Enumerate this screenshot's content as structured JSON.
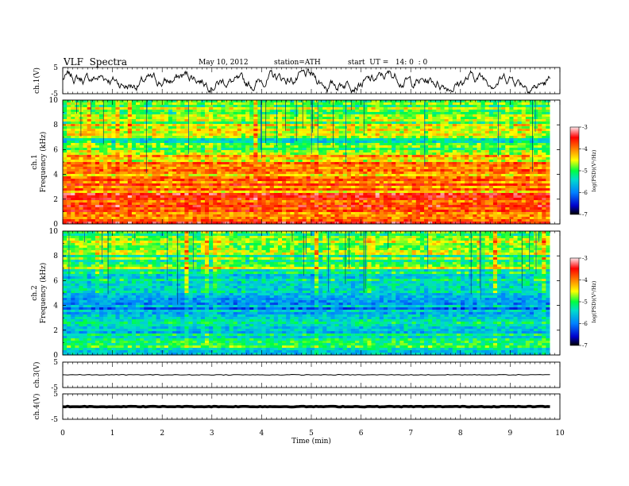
{
  "header": {
    "title": "VLF  Spectra",
    "date": "May 10, 2012",
    "station": "station=ATH",
    "start": "start  UT =   14: 0  : 0"
  },
  "chart_data": {
    "type": "heatmap",
    "xlabel": "Time  (min)",
    "xlim": [
      0,
      10
    ],
    "x_ticks": [
      "0",
      "1",
      "2",
      "3",
      "4",
      "5",
      "6",
      "7",
      "8",
      "9",
      "10"
    ],
    "data_end_min": 9.8,
    "panels": [
      {
        "id": "ch1-waveform",
        "type": "line",
        "ylabel": "ch.1(V)",
        "ylim": [
          -5,
          5
        ],
        "y_ticks": [
          "5",
          "-5"
        ],
        "note": "high-variance noisy waveform"
      },
      {
        "id": "ch1-spectrogram",
        "type": "heatmap",
        "ylabel_top": "ch.1",
        "ylabel": "Frequency  (kHz)",
        "ylim": [
          0,
          10
        ],
        "y_ticks": [
          "0",
          "2",
          "4",
          "6",
          "8",
          "10"
        ],
        "colorbar": {
          "label": "log(PSD)(V²/Hz)",
          "ticks": [
            "-3",
            "-4",
            "-5",
            "-6",
            "-7"
          ],
          "range": [
            -7,
            -3
          ]
        },
        "bands_khz": [
          {
            "from": 0,
            "to": 2.5,
            "level": -3.8
          },
          {
            "from": 2.5,
            "to": 5.0,
            "level": -4.0
          },
          {
            "from": 5.0,
            "to": 5.5,
            "level": -4.4
          },
          {
            "from": 5.5,
            "to": 7.0,
            "level": -5.0
          },
          {
            "from": 7.0,
            "to": 10.0,
            "level": -4.7
          }
        ]
      },
      {
        "id": "ch2-spectrogram",
        "type": "heatmap",
        "ylabel_top": "ch.2",
        "ylabel": "Frequency  (kHz)",
        "ylim": [
          0,
          10
        ],
        "y_ticks": [
          "0",
          "2",
          "4",
          "6",
          "8",
          "10"
        ],
        "colorbar": {
          "label": "log(PSD)(V²/Hz)",
          "ticks": [
            "-3",
            "-4",
            "-5",
            "-6",
            "-7"
          ],
          "range": [
            -7,
            -3
          ]
        },
        "bands_khz": [
          {
            "from": 0,
            "to": 1.0,
            "level": -5.2
          },
          {
            "from": 1.0,
            "to": 3.0,
            "level": -5.4
          },
          {
            "from": 3.0,
            "to": 5.0,
            "level": -5.9
          },
          {
            "from": 5.0,
            "to": 7.0,
            "level": -5.4
          },
          {
            "from": 7.0,
            "to": 10.0,
            "level": -4.9
          }
        ]
      },
      {
        "id": "ch3-waveform",
        "type": "line",
        "ylabel": "ch.3(V)",
        "ylim": [
          -5,
          5
        ],
        "y_ticks": [
          "5",
          "-5"
        ],
        "level": 0,
        "note": "near-constant line"
      },
      {
        "id": "ch4-waveform",
        "type": "line",
        "ylabel": "ch.4(V)",
        "ylim": [
          -5,
          5
        ],
        "y_ticks": [
          "5",
          "-5"
        ],
        "level": 0,
        "note": "thick near-constant line"
      }
    ]
  }
}
